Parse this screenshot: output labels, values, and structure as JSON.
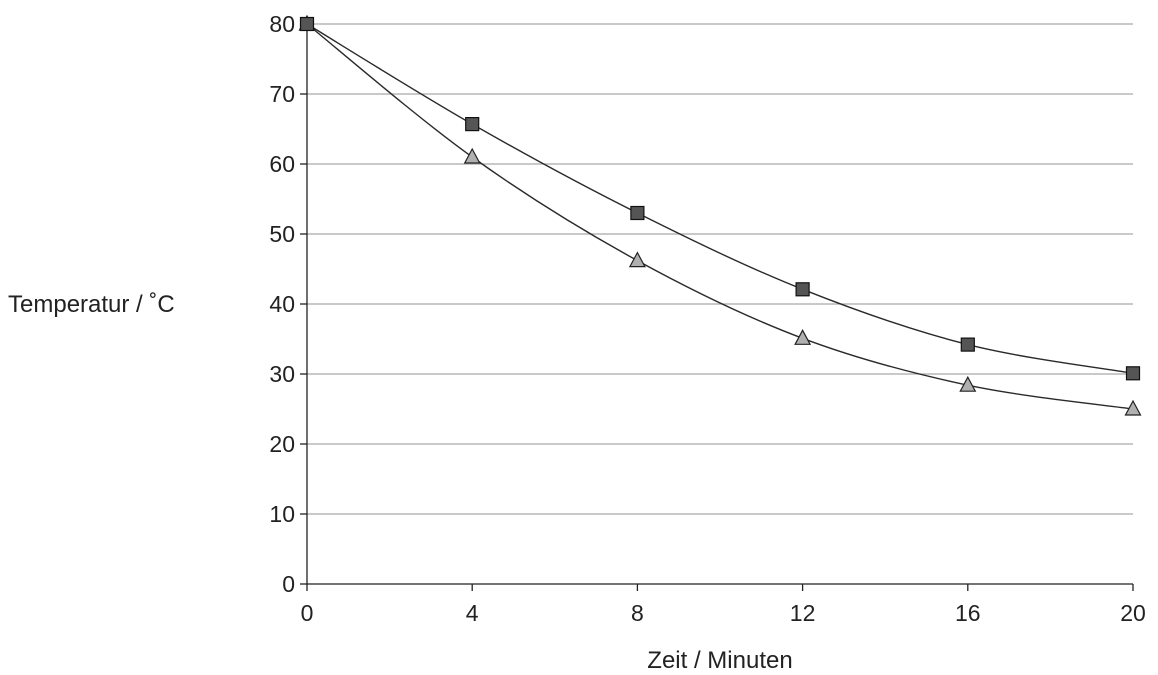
{
  "chart_data": {
    "type": "line",
    "title": "",
    "xlabel": "Zeit / Minuten",
    "ylabel": "Temperatur / ˚C",
    "x": [
      0,
      4,
      8,
      12,
      16,
      20
    ],
    "xlim": [
      0,
      20
    ],
    "ylim": [
      0,
      80
    ],
    "x_ticks": [
      "0",
      "4",
      "8",
      "12",
      "16",
      "20"
    ],
    "y_ticks": [
      "0",
      "10",
      "20",
      "30",
      "40",
      "50",
      "60",
      "70",
      "80"
    ],
    "grid": "horizontal",
    "legend": "none",
    "series": [
      {
        "marker": "square",
        "color": "#555555",
        "values": [
          80,
          65.7,
          53,
          42.1,
          34.2,
          30.1
        ]
      },
      {
        "marker": "triangle",
        "color": "#b0b0b0",
        "values": [
          80,
          61,
          46.2,
          35.1,
          28.4,
          25
        ]
      }
    ]
  }
}
